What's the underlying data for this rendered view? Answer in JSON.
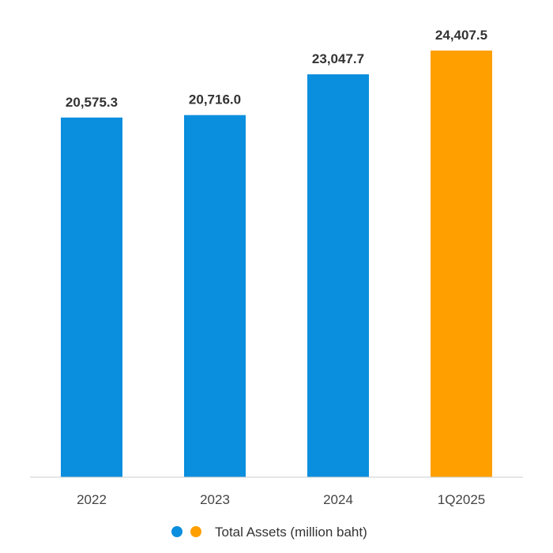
{
  "chart_data": {
    "type": "bar",
    "categories": [
      "2022",
      "2023",
      "2024",
      "1Q2025"
    ],
    "values": [
      20575.3,
      20716.0,
      23047.7,
      24407.5
    ],
    "value_labels": [
      "20,575.3",
      "20,716.0",
      "23,047.7",
      "24,407.5"
    ],
    "bar_colors": [
      "#0a8ede",
      "#0a8ede",
      "#0a8ede",
      "#ff9f00"
    ],
    "legend": {
      "markers": [
        "#0a8ede",
        "#ff9f00"
      ],
      "label": "Total Assets (million baht)",
      "placement": "bottom-center"
    },
    "axis_line_color": "#cccccc",
    "grid": false,
    "title": "",
    "xlabel": "",
    "ylabel": ""
  }
}
